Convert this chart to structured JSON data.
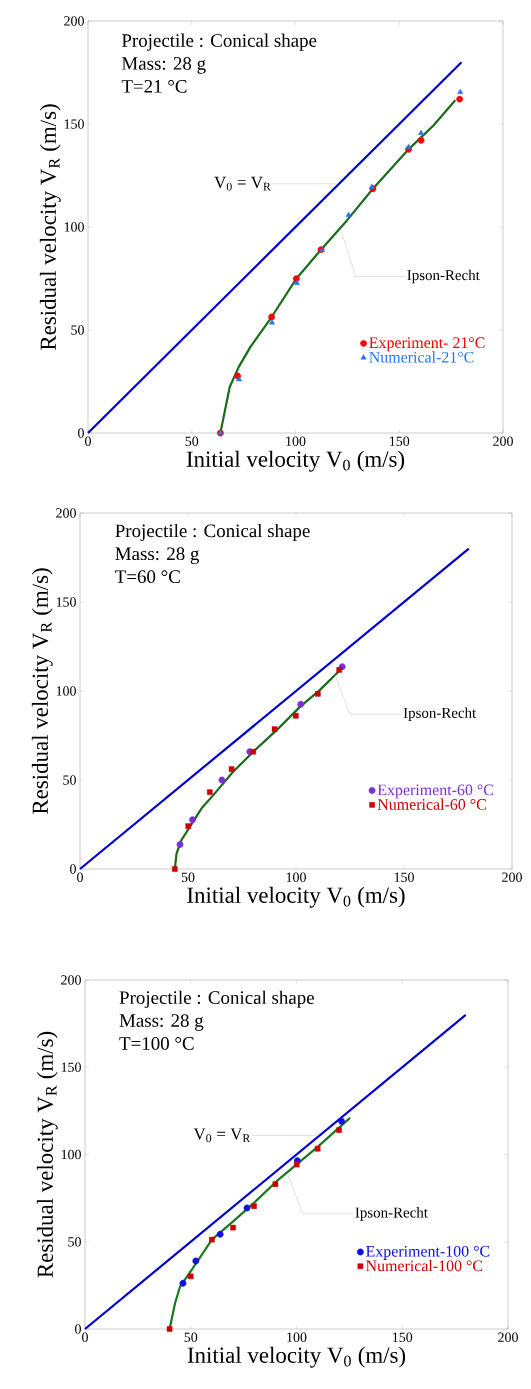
{
  "chart_data": [
    {
      "type": "scatter",
      "xlabel": "Initial velocity V$_{0}$ (m/s)",
      "ylabel": "Residual velocity V$_{R}$ (m/s)",
      "xlim": [
        0,
        200
      ],
      "ylim": [
        0,
        200
      ],
      "xticks": [
        0,
        50,
        100,
        150,
        200
      ],
      "yticks": [
        0,
        50,
        100,
        150,
        200
      ],
      "legend": "bottom right",
      "annotations": [
        "Projectile : Conical shape",
        "Mass: 28 g",
        "T=21 °C",
        {
          "text": "V$_{0}$ = V$_{R}$",
          "x": 120,
          "y": 121
        },
        {
          "text": "Ipson-Recht",
          "x": 122,
          "y": 98
        }
      ],
      "series": [
        {
          "type": "line",
          "color": "#0000cc",
          "marker": "none",
          "x": [
            0,
            180
          ],
          "values": [
            0,
            180
          ]
        },
        {
          "type": "line",
          "color": "#1a6b1a",
          "marker": "none",
          "x": [
            63.8,
            68.3,
            72.6,
            78.2,
            88.5,
            100.4,
            112.3,
            124.8,
            137.3,
            154.5,
            166.6,
            177
          ],
          "values": [
            0,
            22.3,
            32,
            41.7,
            56.3,
            74.9,
            89,
            103.2,
            118.6,
            137.7,
            149.4,
            161.5
          ]
        },
        {
          "type": "scatter",
          "name": "Experiment- 21°C",
          "color": "#ff0000",
          "marker": "circle",
          "x": [
            63.8,
            72.1,
            88.5,
            100.4,
            112.3,
            137.3,
            154.5,
            160.5,
            179.1
          ],
          "values": [
            0,
            27.7,
            56.3,
            74.9,
            89,
            118.6,
            137.7,
            142.1,
            162.1
          ]
        },
        {
          "type": "scatter",
          "name": "Numerical-21°C",
          "color": "#2277ee",
          "marker": "triangle",
          "x": [
            63.8,
            72.8,
            88.7,
            100.7,
            112.8,
            125.6,
            136.8,
            154.5,
            160.5,
            179.4
          ],
          "values": [
            0,
            26,
            53.6,
            72.8,
            88.7,
            105.7,
            119.4,
            138.8,
            145.6,
            165.5
          ]
        }
      ]
    },
    {
      "type": "scatter",
      "xlabel": "Initial velocity V$_{0}$ (m/s)",
      "ylabel": "Residual velocity V$_{R}$ (m/s)",
      "xlim": [
        0,
        200
      ],
      "ylim": [
        0,
        200
      ],
      "xticks": [
        0,
        50,
        100,
        150,
        200
      ],
      "yticks": [
        0,
        50,
        100,
        150,
        200
      ],
      "legend": "bottom right",
      "annotations": [
        "Projectile : Conical shape",
        "Mass: 28 g",
        "T=60 °C",
        {
          "text": "Ipson-Recht",
          "x": 118,
          "y": 109
        }
      ],
      "series": [
        {
          "type": "line",
          "color": "#0000cc",
          "marker": "none",
          "x": [
            0,
            180
          ],
          "values": [
            0,
            180
          ]
        },
        {
          "type": "line",
          "color": "#1a6b1a",
          "marker": "none",
          "x": [
            43.9,
            44.7,
            47,
            50.9,
            56.3,
            61.7,
            70.9,
            80.2,
            91,
            101.8,
            111,
            120.3
          ],
          "values": [
            0,
            8.8,
            16.3,
            23.8,
            34.1,
            41.5,
            54.6,
            65.9,
            78,
            91.1,
            100.5,
            111.7
          ]
        },
        {
          "type": "scatter",
          "name": "Experiment-60 °C",
          "color": "#7b2fd6",
          "marker": "circle",
          "x": [
            46.3,
            52.1,
            65.7,
            78.6,
            102.2,
            121.4
          ],
          "values": [
            13.8,
            27.7,
            50,
            65.9,
            92.6,
            113.6
          ]
        },
        {
          "type": "scatter",
          "name": "Numerical-60 °C",
          "color": "#cc0000",
          "marker": "square",
          "x": [
            43.9,
            50.1,
            60.1,
            70.2,
            80.2,
            90.1,
            99.9,
            110.1,
            120
          ],
          "values": [
            0,
            24.1,
            43.2,
            56.1,
            65.9,
            78.6,
            86.1,
            98.4,
            111.9
          ]
        }
      ]
    },
    {
      "type": "scatter",
      "xlabel": "Initial velocity V$_{0}$ (m/s)",
      "ylabel": "Residual velocity V$_{R}$ (m/s)",
      "xlim": [
        0,
        200
      ],
      "ylim": [
        0,
        200
      ],
      "xticks": [
        0,
        50,
        100,
        150,
        200
      ],
      "yticks": [
        0,
        50,
        100,
        150,
        200
      ],
      "legend": "bottom right",
      "annotations": [
        "Projectile : Conical shape",
        "Mass: 28 g",
        "T=100 °C",
        {
          "text": "V$_{0}$ = V$_{R}$",
          "x": 110,
          "y": 111
        },
        {
          "text": "Ipson-Recht",
          "x": 96,
          "y": 88
        }
      ],
      "series": [
        {
          "type": "line",
          "color": "#0000cc",
          "marker": "none",
          "x": [
            0,
            180
          ],
          "values": [
            0,
            180
          ]
        },
        {
          "type": "line",
          "color": "#1a7a1a",
          "marker": "none",
          "x": [
            40,
            42.6,
            45,
            50,
            60,
            70.2,
            79.9,
            90.6,
            100.1,
            110,
            125.3
          ],
          "values": [
            0,
            14.9,
            24.5,
            33.1,
            51.2,
            61.8,
            72.3,
            84.7,
            94.3,
            104.4,
            121
          ]
        },
        {
          "type": "scatter",
          "name": "Experiment-100 °C",
          "color": "#1010e0",
          "marker": "circle",
          "x": [
            46.3,
            52.4,
            63.9,
            76.6,
            100.4,
            121.3
          ],
          "values": [
            26.2,
            39,
            54.3,
            69.4,
            96.4,
            119.1
          ]
        },
        {
          "type": "scatter",
          "name": "Numerical-100 °C",
          "color": "#cc0000",
          "marker": "square",
          "x": [
            40,
            50,
            60,
            70,
            79.9,
            90,
            100.1,
            110,
            120.1
          ],
          "values": [
            0,
            30.2,
            51.2,
            58.1,
            70.4,
            83,
            94.3,
            103.3,
            114
          ]
        }
      ]
    }
  ]
}
